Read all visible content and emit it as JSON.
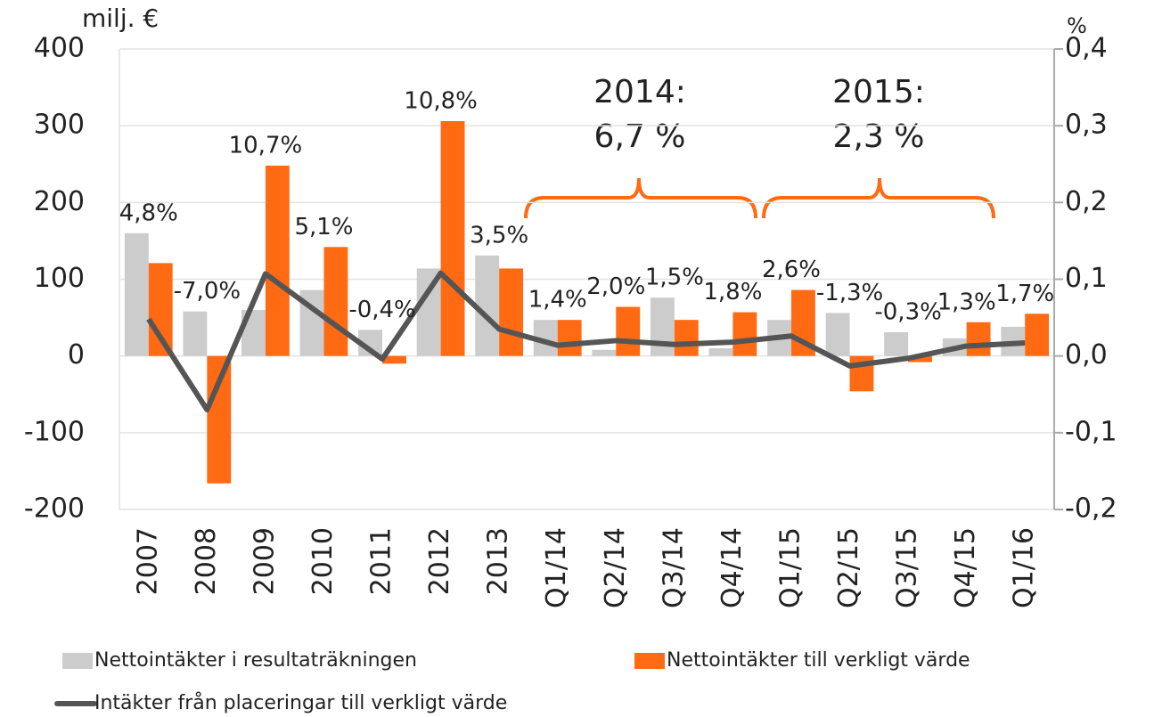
{
  "chart_data": {
    "type": "bar_line",
    "y_axis_label": "milj. €",
    "y2_axis_label": "%",
    "categories": [
      "2007",
      "2008",
      "2009",
      "2010",
      "2011",
      "2012",
      "2013",
      "Q1/14",
      "Q2/14",
      "Q3/14",
      "Q4/14",
      "Q1/15",
      "Q2/15",
      "Q3/15",
      "Q4/15",
      "Q1/16"
    ],
    "series": [
      {
        "name": "Nettointäkter i resultaträkningen",
        "color": "#cccccc",
        "type": "bar",
        "values": [
          160,
          58,
          60,
          86,
          34,
          114,
          131,
          47,
          8,
          76,
          10,
          47,
          56,
          31,
          23,
          38
        ]
      },
      {
        "name": "Nettointäkter till verkligt värde",
        "color": "#ff6a13",
        "type": "bar",
        "values": [
          121,
          -166,
          248,
          142,
          -10,
          306,
          114,
          47,
          64,
          47,
          57,
          86,
          -46,
          -8,
          44,
          55
        ]
      },
      {
        "name": "Intäkter från placeringar till verkligt värde",
        "color": "#555555",
        "type": "line",
        "axis": "y2",
        "values": [
          0.048,
          -0.07,
          0.107,
          0.051,
          -0.004,
          0.108,
          0.035,
          0.014,
          0.02,
          0.015,
          0.018,
          0.026,
          -0.013,
          -0.003,
          0.013,
          0.017
        ],
        "value_labels": [
          "4,8%",
          "-7,0%",
          "10,7%",
          "5,1%",
          "-0,4%",
          "10,8%",
          "3,5%",
          "1,4%",
          "2,0%",
          "1,5%",
          "1,8%",
          "2,6%",
          "-1,3%",
          "-0,3%",
          "1,3%",
          "1,7%"
        ]
      }
    ],
    "ylim": [
      -200,
      400
    ],
    "yticks": [
      -200,
      -100,
      0,
      100,
      200,
      300,
      400
    ],
    "y2lim": [
      -0.2,
      0.4
    ],
    "y2ticks": [
      {
        "value": -0.2,
        "label": "-0,2"
      },
      {
        "value": -0.1,
        "label": "-0,1"
      },
      {
        "value": 0,
        "label": "0,0"
      },
      {
        "value": 0.1,
        "label": "0,1"
      },
      {
        "value": 0.2,
        "label": "0,2"
      },
      {
        "value": 0.3,
        "label": "0,3"
      },
      {
        "value": 0.4,
        "label": "0,4"
      }
    ],
    "grid": true,
    "annotations": [
      {
        "line1": "2014:",
        "line2": "6,7 %"
      },
      {
        "line1": "2015:",
        "line2": "2,3 %"
      }
    ]
  }
}
